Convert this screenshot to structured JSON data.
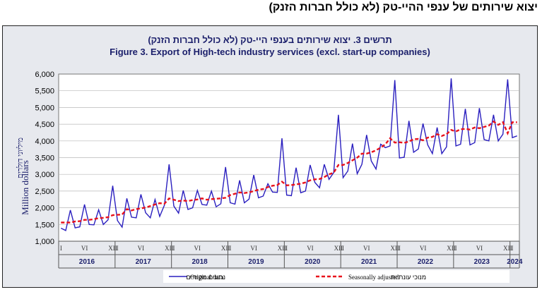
{
  "page_heading": "יצוא שירותים של ענפי ההיי-טק (לא כולל חברות הזנק)",
  "chart_data": {
    "type": "line",
    "title_he": "תרשים 3. יצוא שירותים בענפי היי-טק (לא כולל חברות הזנק)",
    "title_en": "Figure 3. Export of High-tech industry services (excl. start-up companies)",
    "ylabel_he": "מיליוני דולרים",
    "ylabel_en": "Million dollars",
    "ylim": [
      1000,
      6000
    ],
    "ytick_values": [
      1000,
      1500,
      2000,
      2500,
      3000,
      3500,
      4000,
      4500,
      5000,
      5500,
      6000
    ],
    "ytick_labels": [
      "1,000",
      "1,500",
      "2,000",
      "2,500",
      "3,000",
      "3,500",
      "4,000",
      "4,500",
      "5,000",
      "5,500",
      "6,000"
    ],
    "month_labels": [
      "I",
      "VI",
      "XII"
    ],
    "years": [
      "2016",
      "2017",
      "2018",
      "2019",
      "2020",
      "2021",
      "2022",
      "2023",
      "2024"
    ],
    "grid": true,
    "legend_position": "bottom",
    "series": [
      {
        "name": "Original data",
        "name_he": "נתונים מקוריים",
        "color": "#2a1fbf",
        "style": "solid",
        "values": [
          1390,
          1320,
          1930,
          1400,
          1430,
          2100,
          1500,
          1490,
          1940,
          1500,
          1640,
          2660,
          1620,
          1420,
          2280,
          1720,
          1700,
          2400,
          1850,
          1700,
          2250,
          1740,
          2080,
          3300,
          2050,
          1840,
          2520,
          1950,
          2000,
          2520,
          2100,
          2080,
          2500,
          2030,
          2120,
          3220,
          2150,
          2110,
          2820,
          2150,
          2260,
          2980,
          2300,
          2350,
          2720,
          2470,
          2460,
          4080,
          2380,
          2360,
          3200,
          2450,
          2500,
          3280,
          2760,
          2600,
          3300,
          2850,
          3050,
          4780,
          2900,
          3100,
          3920,
          3020,
          3300,
          4180,
          3400,
          3160,
          3900,
          3800,
          3850,
          5820,
          3490,
          3510,
          4600,
          3660,
          3760,
          4520,
          3880,
          3620,
          4400,
          3620,
          3820,
          5870,
          3850,
          3900,
          4960,
          3880,
          3950,
          4980,
          4040,
          4000,
          4780,
          4000,
          4200,
          5840,
          4100,
          4150
        ]
      },
      {
        "name": "Seasonally adjusted",
        "name_he": "מנוכי עונתיות",
        "color": "#e8131d",
        "style": "dashed",
        "values": [
          1560,
          1560,
          1560,
          1590,
          1600,
          1640,
          1640,
          1660,
          1690,
          1700,
          1720,
          1780,
          1790,
          1800,
          1960,
          1920,
          1960,
          1980,
          2010,
          2050,
          2100,
          2140,
          2120,
          2280,
          2240,
          2200,
          2220,
          2200,
          2230,
          2250,
          2280,
          2240,
          2260,
          2270,
          2280,
          2300,
          2380,
          2420,
          2460,
          2440,
          2460,
          2500,
          2540,
          2560,
          2620,
          2660,
          2680,
          2780,
          2670,
          2680,
          2700,
          2720,
          2760,
          2820,
          2850,
          2860,
          2920,
          3000,
          3050,
          3280,
          3280,
          3340,
          3420,
          3500,
          3620,
          3620,
          3660,
          3720,
          3800,
          3900,
          4080,
          3950,
          3960,
          3940,
          3980,
          4050,
          4060,
          4020,
          4100,
          4120,
          4200,
          4150,
          4200,
          4330,
          4280,
          4350,
          4360,
          4340,
          4400,
          4380,
          4420,
          4460,
          4580,
          4480,
          4560,
          4230,
          4560,
          4560
        ]
      }
    ]
  }
}
